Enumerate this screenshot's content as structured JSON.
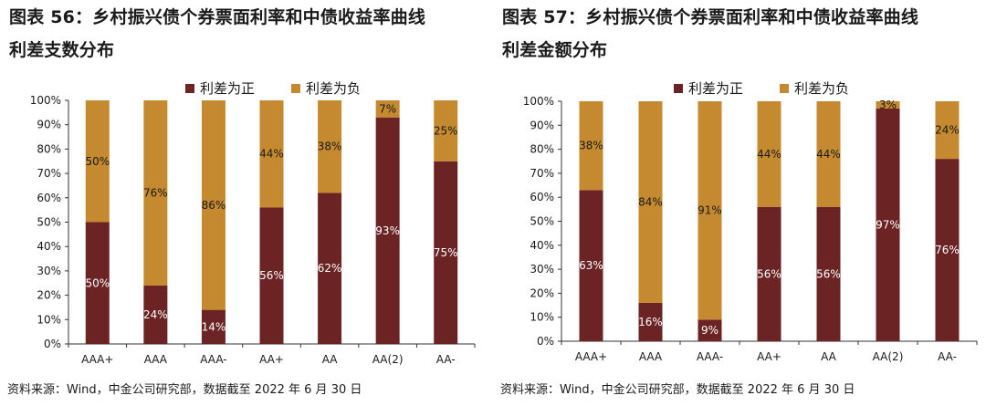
{
  "left": {
    "title_line1": "图表 56：乡村振兴债个券票面利率和中债收益率曲线",
    "title_line2": "利差支数分布",
    "source": "资料来源：Wind，中金公司研究部，数据截至 2022 年 6 月 30 日"
  },
  "right": {
    "title_line1": "图表 57：乡村振兴债个券票面利率和中债收益率曲线",
    "title_line2": "利差金额分布",
    "source": "资料来源：Wind，中金公司研究部，数据截至 2022 年 6 月 30 日"
  },
  "colors": {
    "positive": "#6B2323",
    "negative": "#C58A30"
  },
  "chart_data": [
    {
      "type": "bar",
      "stacked": true,
      "categories": [
        "AAA+",
        "AAA",
        "AAA-",
        "AA+",
        "AA",
        "AA(2)",
        "AA-"
      ],
      "series": [
        {
          "name": "利差为正",
          "values": [
            50,
            24,
            14,
            56,
            62,
            93,
            75
          ],
          "labels": [
            "50%",
            "24%",
            "14%",
            "56%",
            "62%",
            "93%",
            "75%"
          ]
        },
        {
          "name": "利差为负",
          "values": [
            50,
            76,
            86,
            44,
            38,
            7,
            25
          ],
          "labels": [
            "50%",
            "76%",
            "86%",
            "44%",
            "38%",
            "7%",
            "25%"
          ]
        }
      ],
      "ylim": [
        0,
        100
      ],
      "yticks": [
        "0%",
        "10%",
        "20%",
        "30%",
        "40%",
        "50%",
        "60%",
        "70%",
        "80%",
        "90%",
        "100%"
      ],
      "legend": "top",
      "grid": false
    },
    {
      "type": "bar",
      "stacked": true,
      "categories": [
        "AAA+",
        "AAA",
        "AAA-",
        "AA+",
        "AA",
        "AA(2)",
        "AA-"
      ],
      "series": [
        {
          "name": "利差为正",
          "values": [
            63,
            16,
            9,
            56,
            56,
            97,
            76
          ],
          "labels": [
            "63%",
            "16%",
            "9%",
            "56%",
            "56%",
            "97%",
            "76%"
          ]
        },
        {
          "name": "利差为负",
          "values": [
            38,
            84,
            91,
            44,
            44,
            3,
            24
          ],
          "labels": [
            "38%",
            "84%",
            "91%",
            "44%",
            "44%",
            "3%",
            "24%"
          ]
        }
      ],
      "ylim": [
        0,
        100
      ],
      "yticks": [
        "0%",
        "10%",
        "20%",
        "30%",
        "40%",
        "50%",
        "60%",
        "70%",
        "80%",
        "90%",
        "100%"
      ],
      "legend": "top",
      "grid": false
    }
  ]
}
